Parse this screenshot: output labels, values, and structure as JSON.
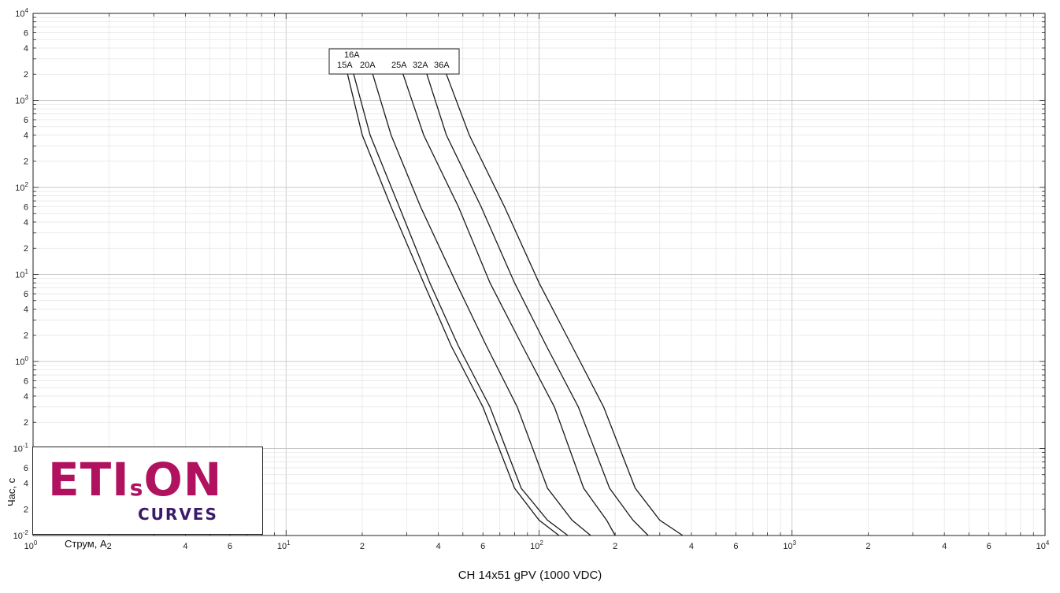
{
  "chart_data": {
    "type": "line",
    "title": "",
    "xlabel": "Струм, А",
    "ylabel": "Час, с",
    "x_scale": "log",
    "y_scale": "log",
    "xlim": [
      1,
      10000
    ],
    "ylim": [
      0.01,
      10000
    ],
    "grid": true,
    "x_ticks": [
      {
        "base": "10",
        "exp": "0"
      },
      {
        "base": "2"
      },
      {
        "base": "4"
      },
      {
        "base": "6"
      },
      {
        "base": "10",
        "exp": "1"
      },
      {
        "base": "2"
      },
      {
        "base": "4"
      },
      {
        "base": "6"
      },
      {
        "base": "10",
        "exp": "2"
      },
      {
        "base": "2"
      },
      {
        "base": "4"
      },
      {
        "base": "6"
      },
      {
        "base": "10",
        "exp": "3"
      },
      {
        "base": "2"
      },
      {
        "base": "4"
      },
      {
        "base": "6"
      },
      {
        "base": "10",
        "exp": "4"
      }
    ],
    "y_ticks": [
      {
        "base": "10",
        "exp": "-2"
      },
      {
        "base": "2"
      },
      {
        "base": "4"
      },
      {
        "base": "6"
      },
      {
        "base": "10",
        "exp": "-1"
      },
      {
        "base": "2"
      },
      {
        "base": "4"
      },
      {
        "base": "6"
      },
      {
        "base": "10",
        "exp": "0"
      },
      {
        "base": "2"
      },
      {
        "base": "4"
      },
      {
        "base": "6"
      },
      {
        "base": "10",
        "exp": "1"
      },
      {
        "base": "2"
      },
      {
        "base": "4"
      },
      {
        "base": "6"
      },
      {
        "base": "10",
        "exp": "2"
      },
      {
        "base": "2"
      },
      {
        "base": "4"
      },
      {
        "base": "6"
      },
      {
        "base": "10",
        "exp": "3"
      },
      {
        "base": "2"
      },
      {
        "base": "4"
      },
      {
        "base": "6"
      },
      {
        "base": "10",
        "exp": "4"
      }
    ],
    "legend": {
      "placement": "inline-top",
      "labels": [
        "16A",
        "15A",
        "20A",
        "25A",
        "32A",
        "36A"
      ]
    },
    "series": [
      {
        "name": "15A",
        "points": [
          [
            17.5,
            2000
          ],
          [
            20,
            400
          ],
          [
            26,
            60
          ],
          [
            35,
            8
          ],
          [
            45,
            1.5
          ],
          [
            60,
            0.3
          ],
          [
            80,
            0.035
          ],
          [
            100,
            0.015
          ],
          [
            120,
            0.01
          ]
        ]
      },
      {
        "name": "16A",
        "points": [
          [
            18.5,
            2000
          ],
          [
            21.5,
            400
          ],
          [
            28,
            60
          ],
          [
            37,
            8
          ],
          [
            48,
            1.5
          ],
          [
            64,
            0.3
          ],
          [
            85,
            0.035
          ],
          [
            108,
            0.015
          ],
          [
            130,
            0.01
          ]
        ]
      },
      {
        "name": "20A",
        "points": [
          [
            22,
            2000
          ],
          [
            26,
            400
          ],
          [
            34,
            60
          ],
          [
            47,
            8
          ],
          [
            62,
            1.5
          ],
          [
            82,
            0.3
          ],
          [
            108,
            0.035
          ],
          [
            135,
            0.015
          ],
          [
            160,
            0.01
          ]
        ]
      },
      {
        "name": "25A",
        "points": [
          [
            29,
            2000
          ],
          [
            35,
            400
          ],
          [
            48,
            60
          ],
          [
            64,
            8
          ],
          [
            86,
            1.5
          ],
          [
            115,
            0.3
          ],
          [
            150,
            0.035
          ],
          [
            185,
            0.015
          ],
          [
            200,
            0.01
          ]
        ]
      },
      {
        "name": "32A",
        "points": [
          [
            36,
            2000
          ],
          [
            43,
            400
          ],
          [
            59,
            60
          ],
          [
            80,
            8
          ],
          [
            107,
            1.5
          ],
          [
            143,
            0.3
          ],
          [
            190,
            0.035
          ],
          [
            235,
            0.015
          ],
          [
            270,
            0.01
          ]
        ]
      },
      {
        "name": "36A",
        "points": [
          [
            43,
            2000
          ],
          [
            53,
            400
          ],
          [
            73,
            60
          ],
          [
            100,
            8
          ],
          [
            135,
            1.5
          ],
          [
            180,
            0.3
          ],
          [
            240,
            0.035
          ],
          [
            300,
            0.015
          ],
          [
            370,
            0.01
          ]
        ]
      }
    ]
  },
  "caption": "CH 14x51 gPV (1000 VDC)",
  "logo": {
    "main_a": "ETI",
    "main_s": "s",
    "main_b": "ON",
    "sub": "CURVES",
    "colors": {
      "main": "#b0125f",
      "sub": "#3b1a6b"
    }
  }
}
